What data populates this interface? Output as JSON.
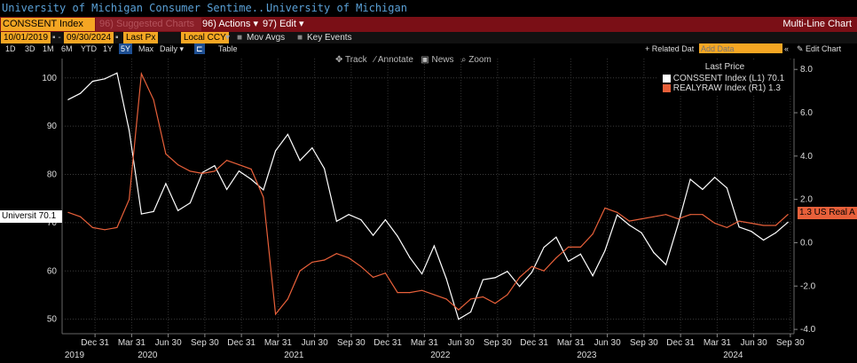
{
  "titlebar": {
    "left_title": "University of Michigan Consumer Sentime...",
    "right_title": "University of Michigan"
  },
  "toolbar": {
    "security": "CONSSENT Index",
    "suggested": "96) Suggested Charts",
    "actions": "96) Actions ▾",
    "edit": "97) Edit ▾",
    "chart_type": "Multi-Line Chart"
  },
  "settings": {
    "start_date": "10/01/2019",
    "end_date": "09/30/2024",
    "field": "Last Px",
    "currency": "Local CCY",
    "mov_avgs": "Mov Avgs",
    "key_events": "Key Events"
  },
  "ranges": [
    "1D",
    "3D",
    "1M",
    "6M",
    "YTD",
    "1Y",
    "5Y",
    "Max"
  ],
  "selected_range": "5Y",
  "period": "Daily ▾",
  "table_label": "Table",
  "related": "+ Related Dat",
  "add_data_placeholder": "Add Data",
  "edit_chart": "Edit Chart",
  "chart_tools": {
    "track": "Track",
    "annotate": "Annotate",
    "news": "News",
    "zoom": "Zoom"
  },
  "legend": {
    "title": "Last Price",
    "rows": [
      {
        "name": "CONSSENT Index  (L1)",
        "value": "70.1",
        "color": "#ffffff"
      },
      {
        "name": "REALYRAW Index  (R1)",
        "value": "1.3",
        "color": "#e8603a"
      }
    ]
  },
  "last_labels": {
    "left": "Universit 70.1",
    "right": "1.3 US Real A"
  },
  "chart_data": {
    "type": "line",
    "x_labels": [
      "Dec 31",
      "Mar 31",
      "Jun 30",
      "Sep 30",
      "Dec 31",
      "Mar 31",
      "Jun 30",
      "Sep 30",
      "Dec 31",
      "Mar 31",
      "Jun 30",
      "Sep 30",
      "Dec 31",
      "Mar 31",
      "Jun 30",
      "Sep 30",
      "Dec 31",
      "Mar 31",
      "Jun 30",
      "Sep 30"
    ],
    "year_labels": [
      "2019",
      "2020",
      "2021",
      "2022",
      "2023",
      "2024"
    ],
    "left_axis": {
      "ticks": [
        50,
        60,
        70,
        80,
        90,
        100
      ],
      "ylim": [
        47,
        104
      ]
    },
    "right_axis": {
      "ticks": [
        "-4.0",
        "-2.0",
        "0.0",
        "2.0",
        "4.0",
        "6.0",
        "8.0"
      ],
      "ylim": [
        -4.2,
        8.5
      ]
    },
    "series": [
      {
        "name": "CONSSENT Index",
        "axis": "left",
        "color": "#ffffff",
        "values": [
          95.5,
          96.8,
          99.3,
          99.8,
          101.0,
          89.1,
          71.8,
          72.3,
          78.1,
          72.5,
          74.1,
          80.4,
          81.8,
          76.9,
          80.7,
          79.0,
          76.8,
          84.9,
          88.3,
          82.9,
          85.5,
          81.2,
          70.3,
          71.7,
          70.6,
          67.4,
          70.6,
          67.2,
          62.8,
          59.4,
          65.2,
          58.4,
          50.0,
          51.5,
          58.2,
          58.6,
          59.9,
          56.8,
          59.7,
          64.9,
          67.0,
          62.0,
          63.5,
          59.0,
          64.2,
          71.6,
          69.5,
          67.9,
          63.8,
          61.3,
          69.7,
          79.0,
          76.9,
          79.4,
          77.2,
          69.1,
          68.2,
          66.4,
          67.9,
          70.1
        ]
      },
      {
        "name": "REALYRAW Index",
        "axis": "right",
        "color": "#e8603a",
        "values": [
          1.4,
          1.2,
          0.7,
          0.6,
          0.7,
          2.0,
          7.8,
          6.6,
          4.1,
          3.6,
          3.3,
          3.2,
          3.3,
          3.8,
          3.6,
          3.4,
          2.1,
          -3.3,
          -2.6,
          -1.3,
          -0.9,
          -0.8,
          -0.5,
          -0.7,
          -1.1,
          -1.6,
          -1.4,
          -2.3,
          -2.3,
          -2.2,
          -2.4,
          -2.6,
          -3.1,
          -2.6,
          -2.5,
          -2.8,
          -2.4,
          -1.6,
          -1.1,
          -1.3,
          -0.7,
          -0.2,
          -0.2,
          0.4,
          1.6,
          1.4,
          1.0,
          1.1,
          1.2,
          1.3,
          1.1,
          1.3,
          1.3,
          0.9,
          0.7,
          1.0,
          0.9,
          0.8,
          0.8,
          1.3
        ]
      }
    ]
  },
  "colors": {
    "accent_orange": "#f5a623",
    "toolbar_red": "#7a0f16",
    "selected_blue": "#1e4f93",
    "series_white": "#ffffff",
    "series_orange": "#e8603a",
    "title_blue": "#5aa0d6"
  }
}
